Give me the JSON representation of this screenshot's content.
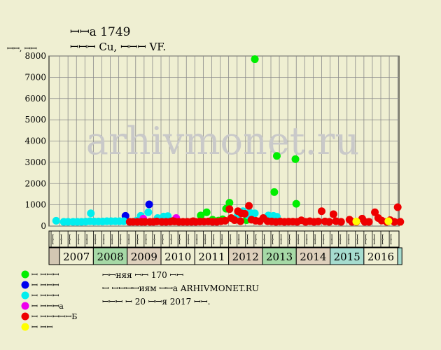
{
  "header": {
    "title": "ꟷꟷа 1749",
    "subtitle": "ꟷꟷꟷ Cu, ꟷꟷꟷ VF.",
    "y_unit": "ꟷꟷ, ꟷꟷ"
  },
  "watermark": "arhivmonet.ru",
  "chart_data": {
    "type": "scatter",
    "title": "ꟷꟷа 1749",
    "subtitle": "ꟷꟷꟷ Cu, ꟷꟷꟷ VF.",
    "ylabel": "ꟷꟷ, ꟷꟷ",
    "xlabel": "",
    "ylim": [
      0,
      8000
    ],
    "yticks": [
      0,
      1000,
      2000,
      3000,
      4000,
      5000,
      6000,
      7000,
      8000
    ],
    "grid": true,
    "x_unit": "quarter",
    "x_start": "2006 Q4",
    "quarter_labels": [
      "ꟷꟷ",
      "ꟷꟷ",
      "ꟷꟷ",
      "ꟷꟷ",
      "ꟷꟷ",
      "ꟷꟷ",
      "ꟷꟷ",
      "ꟷꟷ",
      "ꟷꟷ",
      "ꟷꟷ",
      "ꟷꟷ",
      "ꟷꟷ",
      "ꟷꟷ",
      "ꟷꟷ",
      "ꟷꟷ",
      "ꟷꟷ",
      "ꟷꟷ",
      "ꟷꟷ",
      "ꟷꟷ",
      "ꟷꟷ",
      "ꟷꟷ",
      "ꟷꟷ",
      "ꟷꟷ",
      "ꟷꟷ",
      "ꟷꟷ",
      "ꟷꟷ",
      "ꟷꟷ",
      "ꟷꟷ",
      "ꟷꟷ",
      "ꟷꟷ",
      "ꟷꟷ",
      "ꟷꟷ",
      "ꟷꟷ",
      "ꟷꟷ",
      "ꟷꟷ",
      "ꟷꟷ",
      "ꟷꟷ",
      "ꟷꟷ",
      "ꟷꟷ",
      "ꟷꟷ",
      "ꟷꟷ"
    ],
    "years": [
      {
        "label": "",
        "start": 0,
        "span": 1,
        "color": "#d3c7b3"
      },
      {
        "label": "2007",
        "start": 1,
        "span": 4,
        "color": "#efefd2"
      },
      {
        "label": "2008",
        "start": 5,
        "span": 4,
        "color": "#a6d9a6"
      },
      {
        "label": "2009",
        "start": 9,
        "span": 4,
        "color": "#ded0bc"
      },
      {
        "label": "2010",
        "start": 13,
        "span": 4,
        "color": "#efefd2"
      },
      {
        "label": "2011",
        "start": 17,
        "span": 4,
        "color": "#efefd2"
      },
      {
        "label": "2012",
        "start": 21,
        "span": 4,
        "color": "#ded0bc"
      },
      {
        "label": "2013",
        "start": 25,
        "span": 4,
        "color": "#a6d9a6"
      },
      {
        "label": "2014",
        "start": 29,
        "span": 4,
        "color": "#ded0bc"
      },
      {
        "label": "2015",
        "start": 33,
        "span": 4,
        "color": "#a6dccf"
      },
      {
        "label": "2016",
        "start": 37,
        "span": 4,
        "color": "#efefd2"
      },
      {
        "label": "",
        "start": 41,
        "span": 0.5,
        "color": "#a6dccf"
      }
    ],
    "series": [
      {
        "name": "ꟷ ꟷꟷꟷ",
        "color": "#00ee00",
        "points": [
          {
            "x": 17.2,
            "y": 500
          },
          {
            "x": 17.9,
            "y": 650
          },
          {
            "x": 19.3,
            "y": 260
          },
          {
            "x": 20.2,
            "y": 820
          },
          {
            "x": 20.6,
            "y": 1100
          },
          {
            "x": 21.3,
            "y": 350
          },
          {
            "x": 22.6,
            "y": 280
          },
          {
            "x": 23.6,
            "y": 7850
          },
          {
            "x": 25.9,
            "y": 1600
          },
          {
            "x": 26.2,
            "y": 3300
          },
          {
            "x": 28.4,
            "y": 3150
          },
          {
            "x": 28.5,
            "y": 1050
          },
          {
            "x": 18.6,
            "y": 300
          },
          {
            "x": 19.8,
            "y": 320
          }
        ]
      },
      {
        "name": "ꟷ ꟷꟷꟷ",
        "color": "#0000ee",
        "points": [
          {
            "x": 8.3,
            "y": 480
          },
          {
            "x": 11.1,
            "y": 1020
          },
          {
            "x": 12.4,
            "y": 300
          }
        ]
      },
      {
        "name": "ꟷ ꟷꟷꟷ",
        "color": "#00eeee",
        "points": [
          {
            "x": 0.1,
            "y": 250
          },
          {
            "x": 1.0,
            "y": 200
          },
          {
            "x": 1.5,
            "y": 200
          },
          {
            "x": 2.1,
            "y": 200
          },
          {
            "x": 2.6,
            "y": 200
          },
          {
            "x": 3.1,
            "y": 200
          },
          {
            "x": 3.6,
            "y": 210
          },
          {
            "x": 4.1,
            "y": 230
          },
          {
            "x": 4.2,
            "y": 600
          },
          {
            "x": 4.6,
            "y": 220
          },
          {
            "x": 5.1,
            "y": 220
          },
          {
            "x": 5.6,
            "y": 220
          },
          {
            "x": 6.1,
            "y": 230
          },
          {
            "x": 6.6,
            "y": 230
          },
          {
            "x": 7.1,
            "y": 230
          },
          {
            "x": 7.6,
            "y": 230
          },
          {
            "x": 8.1,
            "y": 230
          },
          {
            "x": 9.6,
            "y": 250
          },
          {
            "x": 10.1,
            "y": 480
          },
          {
            "x": 11.0,
            "y": 650
          },
          {
            "x": 12.1,
            "y": 380
          },
          {
            "x": 12.8,
            "y": 450
          },
          {
            "x": 13.3,
            "y": 470
          },
          {
            "x": 21.6,
            "y": 520
          },
          {
            "x": 22.2,
            "y": 700
          },
          {
            "x": 23.0,
            "y": 640
          },
          {
            "x": 23.6,
            "y": 600
          },
          {
            "x": 25.2,
            "y": 500
          },
          {
            "x": 25.8,
            "y": 480
          },
          {
            "x": 26.2,
            "y": 440
          },
          {
            "x": 22.8,
            "y": 500
          }
        ]
      },
      {
        "name": "ꟷ ꟷꟷꟷа",
        "color": "#ee00ee",
        "points": [
          {
            "x": 10.4,
            "y": 350
          },
          {
            "x": 14.3,
            "y": 380
          }
        ]
      },
      {
        "name": "ꟷ ꟷꟷꟷꟷꟷБ",
        "color": "#ee0000",
        "points": [
          {
            "x": 8.8,
            "y": 200
          },
          {
            "x": 9.2,
            "y": 200
          },
          {
            "x": 9.7,
            "y": 200
          },
          {
            "x": 10.2,
            "y": 200
          },
          {
            "x": 10.6,
            "y": 200
          },
          {
            "x": 11.2,
            "y": 200
          },
          {
            "x": 11.6,
            "y": 200
          },
          {
            "x": 12.0,
            "y": 220
          },
          {
            "x": 12.6,
            "y": 200
          },
          {
            "x": 13.1,
            "y": 200
          },
          {
            "x": 13.6,
            "y": 210
          },
          {
            "x": 14.1,
            "y": 220
          },
          {
            "x": 14.6,
            "y": 200
          },
          {
            "x": 15.1,
            "y": 200
          },
          {
            "x": 15.6,
            "y": 200
          },
          {
            "x": 16.1,
            "y": 200
          },
          {
            "x": 16.6,
            "y": 200
          },
          {
            "x": 17.1,
            "y": 210
          },
          {
            "x": 17.6,
            "y": 210
          },
          {
            "x": 18.1,
            "y": 220
          },
          {
            "x": 18.6,
            "y": 200
          },
          {
            "x": 19.1,
            "y": 200
          },
          {
            "x": 19.6,
            "y": 230
          },
          {
            "x": 20.1,
            "y": 250
          },
          {
            "x": 20.6,
            "y": 800
          },
          {
            "x": 20.8,
            "y": 380
          },
          {
            "x": 21.2,
            "y": 280
          },
          {
            "x": 21.6,
            "y": 700
          },
          {
            "x": 22.0,
            "y": 600
          },
          {
            "x": 22.4,
            "y": 580
          },
          {
            "x": 22.9,
            "y": 950
          },
          {
            "x": 23.2,
            "y": 300
          },
          {
            "x": 23.7,
            "y": 250
          },
          {
            "x": 24.2,
            "y": 230
          },
          {
            "x": 24.6,
            "y": 380
          },
          {
            "x": 25.1,
            "y": 230
          },
          {
            "x": 25.6,
            "y": 220
          },
          {
            "x": 26.1,
            "y": 200
          },
          {
            "x": 26.6,
            "y": 220
          },
          {
            "x": 27.1,
            "y": 200
          },
          {
            "x": 27.6,
            "y": 210
          },
          {
            "x": 28.1,
            "y": 210
          },
          {
            "x": 28.6,
            "y": 200
          },
          {
            "x": 29.1,
            "y": 270
          },
          {
            "x": 29.6,
            "y": 200
          },
          {
            "x": 30.1,
            "y": 230
          },
          {
            "x": 30.6,
            "y": 200
          },
          {
            "x": 31.1,
            "y": 220
          },
          {
            "x": 31.5,
            "y": 700
          },
          {
            "x": 31.9,
            "y": 220
          },
          {
            "x": 32.4,
            "y": 200
          },
          {
            "x": 32.9,
            "y": 560
          },
          {
            "x": 33.2,
            "y": 230
          },
          {
            "x": 33.8,
            "y": 200
          },
          {
            "x": 34.8,
            "y": 300
          },
          {
            "x": 35.1,
            "y": 200
          },
          {
            "x": 35.6,
            "y": 200
          },
          {
            "x": 36.3,
            "y": 350
          },
          {
            "x": 36.6,
            "y": 200
          },
          {
            "x": 37.1,
            "y": 200
          },
          {
            "x": 37.8,
            "y": 650
          },
          {
            "x": 38.2,
            "y": 380
          },
          {
            "x": 38.6,
            "y": 260
          },
          {
            "x": 39.2,
            "y": 200
          },
          {
            "x": 39.6,
            "y": 280
          },
          {
            "x": 40.1,
            "y": 200
          },
          {
            "x": 40.5,
            "y": 890
          },
          {
            "x": 40.8,
            "y": 200
          },
          {
            "x": 21.9,
            "y": 230
          },
          {
            "x": 16.3,
            "y": 230
          },
          {
            "x": 13.9,
            "y": 240
          }
        ]
      },
      {
        "name": "ꟷ ꟷꟷ",
        "color": "#ffff00",
        "points": [
          {
            "x": 35.6,
            "y": 220
          },
          {
            "x": 39.4,
            "y": 230
          }
        ]
      }
    ]
  },
  "footer": {
    "line1": "ꟷꟷняя ꟷꟷ 170 ꟷꟷ",
    "line2": "ꟷ ꟷꟷꟷꟷиям ꟷꟷа ARHIVMONET.RU",
    "line3": "ꟷꟷꟷ ꟷ 20 ꟷꟷя 2017 ꟷꟷ."
  }
}
